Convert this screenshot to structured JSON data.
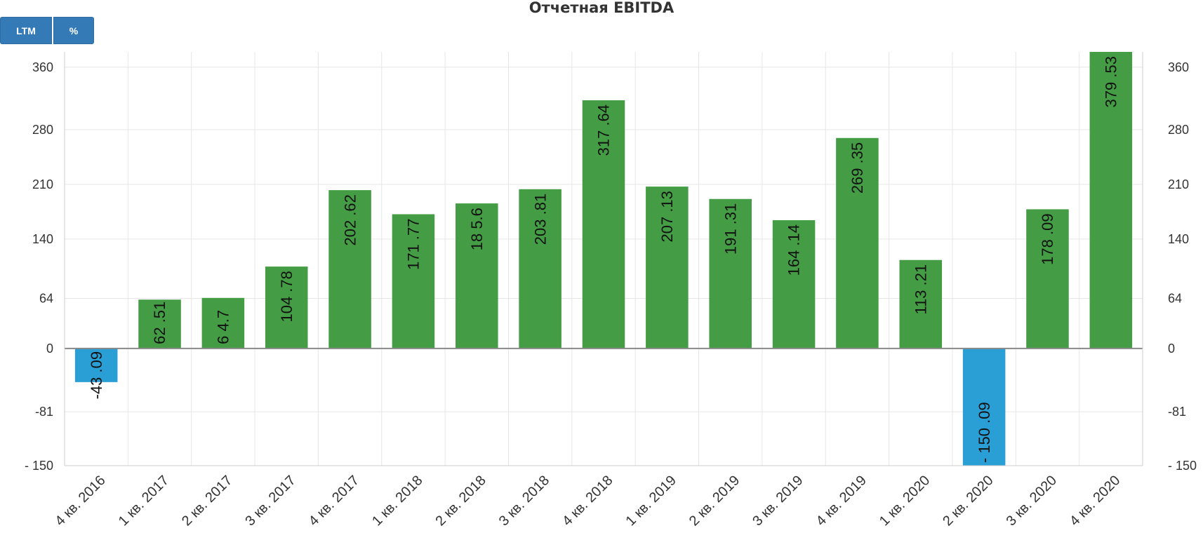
{
  "chart_data": {
    "type": "bar",
    "title": "Отчетная EBITDA",
    "categories": [
      "4 кв. 2016",
      "1 кв. 2017",
      "2 кв. 2017",
      "3 кв. 2017",
      "4 кв. 2017",
      "1 кв. 2018",
      "2 кв. 2018",
      "3 кв. 2018",
      "4 кв. 2018",
      "1 кв. 2019",
      "2 кв. 2019",
      "3 кв. 2019",
      "4 кв. 2019",
      "1 кв. 2020",
      "2 кв. 2020",
      "3 кв. 2020",
      "4 кв. 2020"
    ],
    "values": [
      -43.09,
      62.51,
      64.7,
      104.78,
      202.62,
      171.77,
      185.6,
      203.81,
      317.64,
      207.13,
      191.31,
      164.14,
      269.35,
      113.21,
      -150.09,
      178.09,
      379.53
    ],
    "data_labels": [
      "-43 .09",
      "62 .51",
      "6 4.7",
      "104 .78",
      "202 .62",
      "171 .77",
      "18 5.6",
      "203 .81",
      "317 .64",
      "207 .13",
      "191 .31",
      "164 .14",
      "269 .35",
      "113 .21",
      "- 150 .09",
      "178 .09",
      "379 .53"
    ],
    "y_ticks": [
      360,
      280,
      210,
      140,
      64,
      0,
      -81,
      -150
    ],
    "y_tick_labels": [
      "360",
      "280",
      "210",
      "140",
      "64",
      "0",
      "-81",
      "- 150"
    ],
    "ylim": [
      -150,
      379.53
    ],
    "grid": true,
    "dual_y_axis": true,
    "colors": {
      "positive": "#449d44",
      "negative": "#2a9fd6"
    }
  },
  "buttons": {
    "ltm": "LTM",
    "percent": "%"
  }
}
